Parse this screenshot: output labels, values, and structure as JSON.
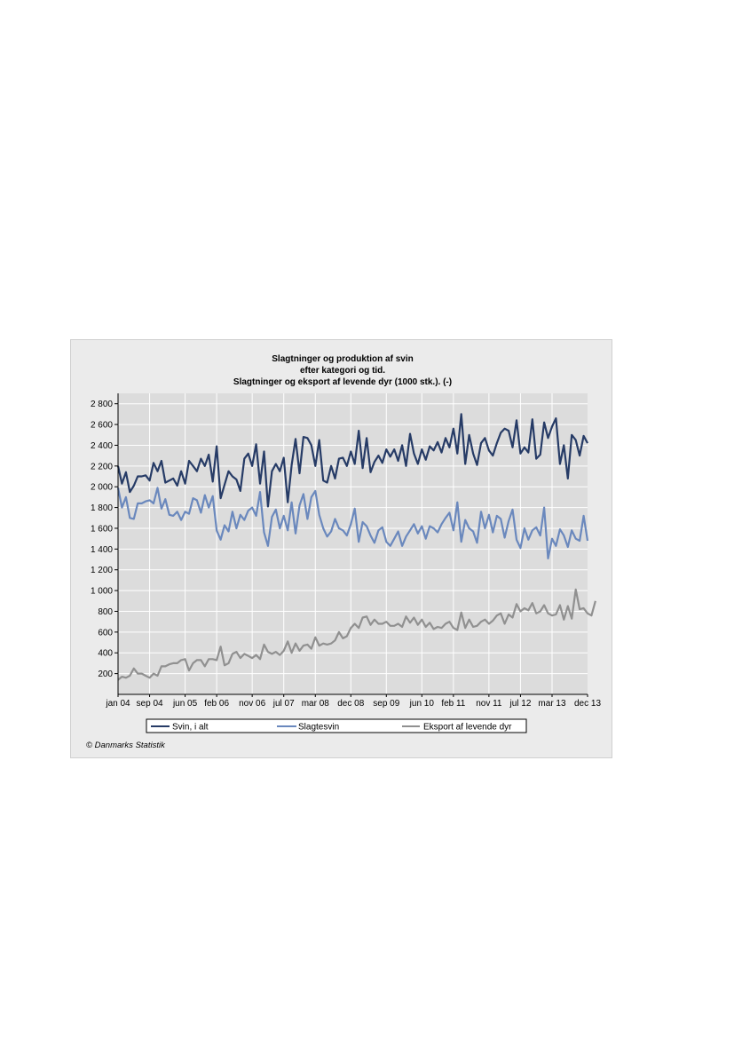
{
  "chart_data": {
    "type": "line",
    "title": [
      "Slagtninger og produktion af svin",
      "efter kategori og tid.",
      "Slagtninger og eksport af levende dyr (1000 stk.). (-)"
    ],
    "ylim": [
      0,
      2900
    ],
    "yticks": [
      200,
      400,
      600,
      800,
      1000,
      1200,
      1400,
      1600,
      1800,
      2000,
      2200,
      2400,
      2600,
      2800
    ],
    "ytick_labels": [
      "200",
      "400",
      "600",
      "800",
      "1 000",
      "1 200",
      "1 400",
      "1 600",
      "1 800",
      "2 000",
      "2 200",
      "2 400",
      "2 600",
      "2 800"
    ],
    "x_tick_labels": [
      "jan 04",
      "sep 04",
      "jun 05",
      "feb 06",
      "nov 06",
      "jul 07",
      "mar 08",
      "dec 08",
      "sep 09",
      "jun 10",
      "feb 11",
      "nov 11",
      "jul 12",
      "mar 13",
      "dec 13"
    ],
    "x_tick_index": [
      0,
      8,
      17,
      25,
      34,
      42,
      50,
      59,
      68,
      77,
      85,
      94,
      102,
      110,
      119
    ],
    "x_count": 120,
    "grid": true,
    "legend_position": "bottom",
    "series": [
      {
        "name": "Svin, i alt",
        "color": "#263b66",
        "values": [
          2200,
          2030,
          2140,
          1950,
          2010,
          2100,
          2100,
          2110,
          2060,
          2230,
          2150,
          2250,
          2040,
          2060,
          2080,
          2010,
          2150,
          2030,
          2250,
          2200,
          2150,
          2270,
          2200,
          2310,
          2050,
          2390,
          1890,
          2020,
          2150,
          2100,
          2070,
          1960,
          2270,
          2320,
          2200,
          2410,
          2030,
          2340,
          1810,
          2150,
          2220,
          2150,
          2280,
          1850,
          2210,
          2460,
          2130,
          2480,
          2470,
          2400,
          2200,
          2450,
          2060,
          2040,
          2200,
          2080,
          2270,
          2280,
          2200,
          2340,
          2220,
          2540,
          2180,
          2470,
          2140,
          2240,
          2300,
          2230,
          2360,
          2290,
          2360,
          2250,
          2400,
          2200,
          2510,
          2320,
          2220,
          2360,
          2260,
          2390,
          2350,
          2430,
          2330,
          2470,
          2380,
          2560,
          2320,
          2700,
          2220,
          2500,
          2320,
          2210,
          2420,
          2470,
          2350,
          2300,
          2420,
          2520,
          2560,
          2540,
          2380,
          2640,
          2320,
          2380,
          2330,
          2650,
          2270,
          2310,
          2620,
          2470,
          2580,
          2660,
          2220,
          2400,
          2080,
          2500,
          2450,
          2300,
          2490,
          2420
        ]
      },
      {
        "name": "Slagtesvin",
        "color": "#6a88bd",
        "values": [
          1990,
          1800,
          1900,
          1700,
          1690,
          1840,
          1840,
          1860,
          1870,
          1840,
          1990,
          1790,
          1880,
          1730,
          1720,
          1760,
          1680,
          1760,
          1740,
          1890,
          1870,
          1750,
          1920,
          1800,
          1910,
          1580,
          1490,
          1630,
          1570,
          1760,
          1600,
          1730,
          1680,
          1770,
          1800,
          1720,
          1950,
          1560,
          1430,
          1710,
          1780,
          1600,
          1720,
          1580,
          1850,
          1550,
          1820,
          1930,
          1690,
          1900,
          1960,
          1730,
          1600,
          1520,
          1570,
          1690,
          1600,
          1580,
          1530,
          1640,
          1790,
          1470,
          1660,
          1620,
          1530,
          1460,
          1580,
          1610,
          1470,
          1430,
          1500,
          1570,
          1430,
          1520,
          1580,
          1640,
          1550,
          1620,
          1500,
          1620,
          1600,
          1560,
          1640,
          1700,
          1750,
          1580,
          1850,
          1470,
          1680,
          1600,
          1570,
          1460,
          1760,
          1600,
          1730,
          1560,
          1720,
          1690,
          1510,
          1670,
          1780,
          1490,
          1410,
          1600,
          1490,
          1580,
          1610,
          1530,
          1800,
          1310,
          1500,
          1430,
          1590,
          1530,
          1420,
          1580,
          1500,
          1480,
          1720,
          1480
        ]
      },
      {
        "name": "Eksport af levende dyr",
        "color": "#909090",
        "values": [
          140,
          170,
          160,
          180,
          250,
          200,
          200,
          180,
          160,
          200,
          180,
          270,
          270,
          290,
          300,
          300,
          330,
          340,
          230,
          300,
          330,
          330,
          270,
          340,
          340,
          330,
          460,
          280,
          300,
          390,
          410,
          350,
          390,
          370,
          350,
          380,
          340,
          480,
          410,
          390,
          410,
          380,
          420,
          510,
          400,
          490,
          420,
          470,
          480,
          440,
          550,
          470,
          490,
          480,
          490,
          520,
          600,
          540,
          560,
          640,
          680,
          640,
          740,
          750,
          670,
          720,
          680,
          680,
          700,
          660,
          660,
          680,
          650,
          750,
          690,
          740,
          670,
          720,
          650,
          690,
          630,
          650,
          640,
          680,
          700,
          640,
          620,
          790,
          640,
          720,
          650,
          660,
          700,
          720,
          680,
          710,
          760,
          780,
          680,
          770,
          740,
          870,
          800,
          830,
          810,
          880,
          780,
          800,
          860,
          780,
          760,
          770,
          860,
          720,
          850,
          730,
          1010,
          820,
          830,
          780,
          760,
          900
        ]
      }
    ]
  },
  "credit": "© Danmarks Statistik"
}
